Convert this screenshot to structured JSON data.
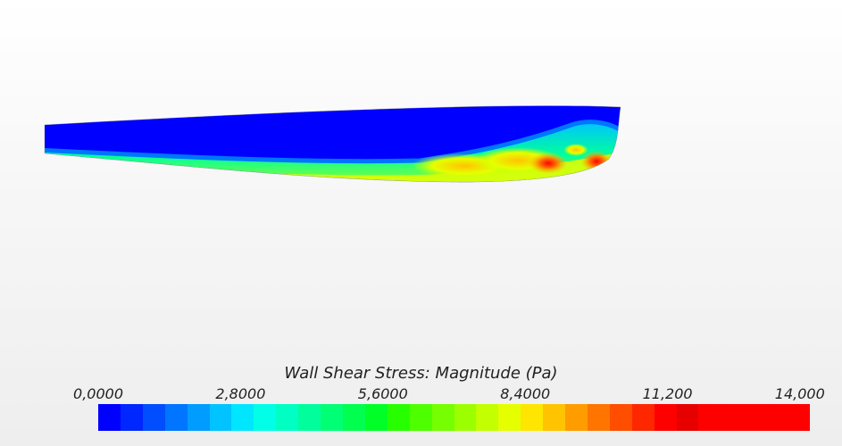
{
  "legend": {
    "title": "Wall Shear Stress: Magnitude (Pa)",
    "min": 0,
    "max": 14000,
    "ticks": [
      {
        "value": 0,
        "label": "0,0000"
      },
      {
        "value": 2800,
        "label": "2,8000"
      },
      {
        "value": 5600,
        "label": "5,6000"
      },
      {
        "value": 8400,
        "label": "8,4000"
      },
      {
        "value": 11200,
        "label": "11,200"
      },
      {
        "value": 14000,
        "label": "14,000"
      }
    ],
    "colors": [
      "#0000ff",
      "#0027ff",
      "#004eff",
      "#0075ff",
      "#009cff",
      "#00c3ff",
      "#00e6ff",
      "#00ffe6",
      "#00ffc3",
      "#00ff9c",
      "#00ff75",
      "#00ff4e",
      "#00ff27",
      "#27ff00",
      "#4eff00",
      "#75ff00",
      "#9cff00",
      "#c3ff00",
      "#e6ff00",
      "#ffe600",
      "#ffc300",
      "#ff9c00",
      "#ff7500",
      "#ff4e00",
      "#ff2700",
      "#ff0000",
      "#e60000",
      "#ff0000",
      "#ff0000",
      "#ff0000",
      "#ff0000",
      "#ff0000"
    ]
  },
  "hull": {
    "colors": {
      "low": "#0000ff",
      "mid_low": "#00c3ff",
      "mid": "#00ff9c",
      "mid_high": "#c3ff00",
      "high": "#ffc300",
      "peak": "#ff0000"
    }
  }
}
